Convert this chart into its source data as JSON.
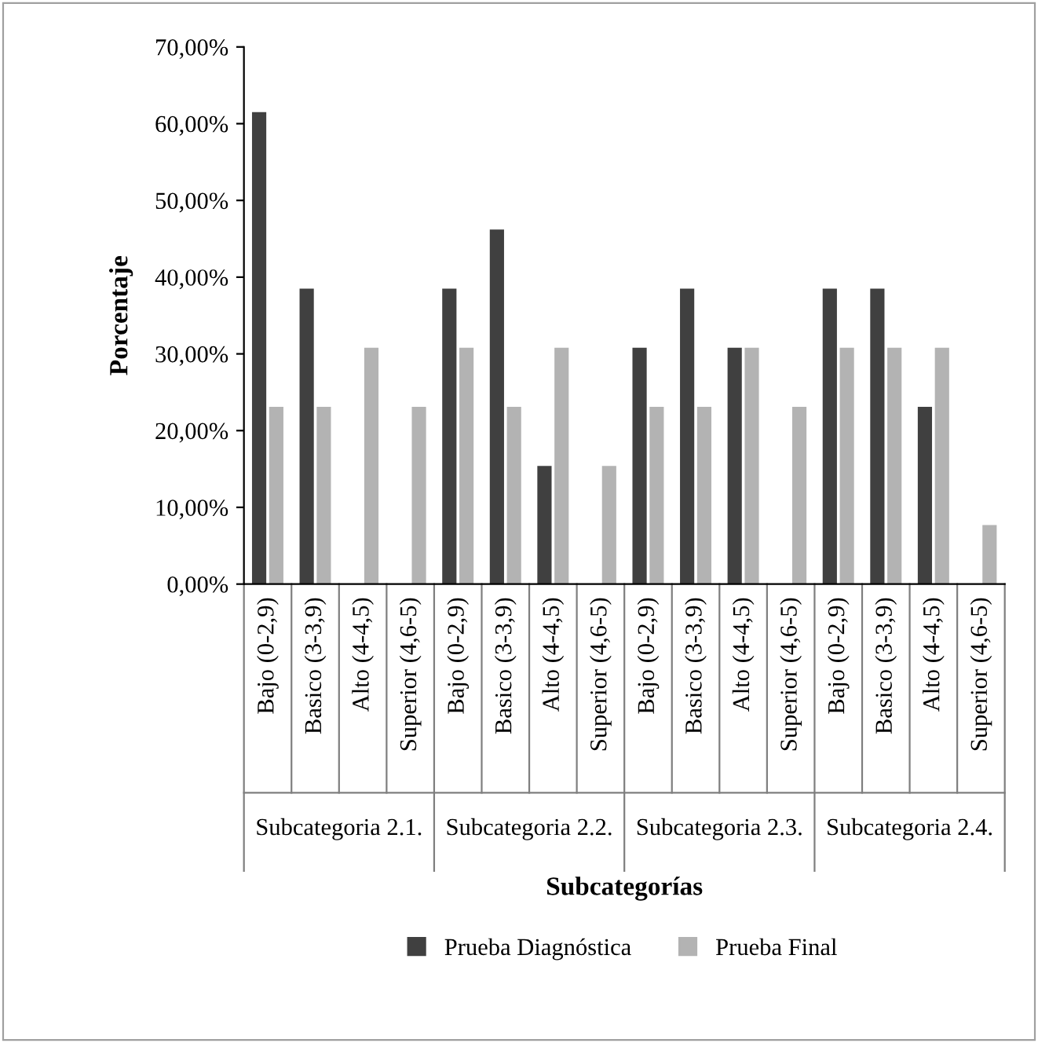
{
  "chart_data": {
    "type": "bar",
    "xlabel": "Subcategorías",
    "ylabel": "Porcentaje",
    "categories": [
      "Bajo (0-2,9)",
      "Basico (3-3,9)",
      "Alto (4-4,5)",
      "Superior (4,6-5)",
      "Bajo (0-2,9)",
      "Basico (3-3,9)",
      "Alto (4-4,5)",
      "Superior (4,6-5)",
      "Bajo (0-2,9)",
      "Basico (3-3,9)",
      "Alto (4-4,5)",
      "Superior (4,6-5)",
      "Bajo (0-2,9)",
      "Basico (3-3,9)",
      "Alto (4-4,5)",
      "Superior (4,6-5)"
    ],
    "annotations": [
      "Subcategoria 2.1.",
      "Subcategoria 2.2.",
      "Subcategoria 2.3.",
      "Subcategoria 2.4."
    ],
    "series": [
      {
        "name": "Prueba Diagnóstica",
        "color": "#404040",
        "values": [
          61.5,
          38.5,
          0,
          0,
          38.5,
          46.2,
          15.4,
          0,
          30.8,
          38.5,
          30.8,
          0,
          38.5,
          38.5,
          23.1,
          0
        ]
      },
      {
        "name": "Prueba Final",
        "color": "#b3b3b3",
        "values": [
          23.1,
          23.1,
          30.8,
          23.1,
          30.8,
          23.1,
          30.8,
          15.4,
          23.1,
          23.1,
          30.8,
          23.1,
          30.8,
          30.8,
          30.8,
          7.7
        ]
      }
    ],
    "ylim": [
      0,
      70
    ],
    "yticks": [
      {
        "value": 0,
        "label": "0,00%"
      },
      {
        "value": 10,
        "label": "10,00%"
      },
      {
        "value": 20,
        "label": "20,00%"
      },
      {
        "value": 30,
        "label": "30,00%"
      },
      {
        "value": 40,
        "label": "40,00%"
      },
      {
        "value": 50,
        "label": "50,00%"
      },
      {
        "value": 60,
        "label": "60,00%"
      },
      {
        "value": 70,
        "label": "70,00%"
      }
    ],
    "grid": false,
    "legend": "bottom"
  }
}
